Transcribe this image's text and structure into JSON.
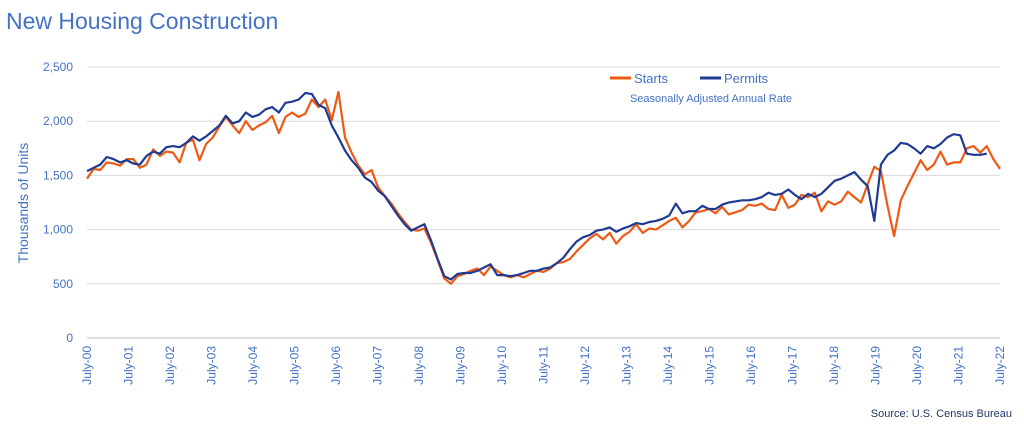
{
  "title": "New Housing Construction",
  "source": "Source: U.S. Census Bureau",
  "colors": {
    "starts": "#EE5A14",
    "permits": "#1F3A93",
    "text": "#4472C4",
    "grid": "#D9D9D9"
  },
  "chart_data": {
    "type": "line",
    "title": "New Housing Construction",
    "subtitle": "Seasonally Adjusted Annual Rate",
    "ylabel": "Thousands of Units",
    "xlabel": "",
    "ylim": [
      0,
      2500
    ],
    "yticks": [
      0,
      500,
      1000,
      1500,
      2000,
      2500
    ],
    "ytick_labels": [
      "0",
      "500",
      "1,000",
      "1,500",
      "2,000",
      "2,500"
    ],
    "xticks": [
      "July-00",
      "July-01",
      "July-02",
      "July-03",
      "July-04",
      "July-05",
      "July-06",
      "July-07",
      "July-08",
      "July-09",
      "July-10",
      "July-11",
      "July-12",
      "July-13",
      "July-14",
      "July-15",
      "July-16",
      "July-17",
      "July-18",
      "July-19",
      "July-20",
      "July-21",
      "July-22"
    ],
    "grid": "horizontal",
    "legend": "top-center",
    "x_frequency": "quarterly",
    "x_start": "July-00",
    "series": [
      {
        "name": "Starts",
        "color": "#EE5A14",
        "values": [
          1470,
          1560,
          1550,
          1620,
          1610,
          1590,
          1650,
          1650,
          1570,
          1600,
          1740,
          1680,
          1720,
          1710,
          1620,
          1800,
          1830,
          1640,
          1790,
          1850,
          1950,
          2040,
          1960,
          1890,
          2000,
          1920,
          1960,
          1990,
          2050,
          1890,
          2040,
          2080,
          2040,
          2070,
          2200,
          2130,
          2200,
          2010,
          2270,
          1850,
          1710,
          1590,
          1510,
          1550,
          1390,
          1310,
          1240,
          1150,
          1070,
          1000,
          990,
          1010,
          880,
          720,
          550,
          500,
          570,
          590,
          620,
          640,
          580,
          660,
          620,
          580,
          560,
          580,
          560,
          590,
          620,
          610,
          640,
          690,
          700,
          730,
          800,
          860,
          920,
          960,
          910,
          970,
          870,
          940,
          980,
          1050,
          970,
          1010,
          1000,
          1040,
          1080,
          1110,
          1020,
          1080,
          1160,
          1170,
          1190,
          1150,
          1210,
          1140,
          1160,
          1180,
          1230,
          1220,
          1240,
          1190,
          1180,
          1320,
          1200,
          1230,
          1320,
          1300,
          1340,
          1170,
          1260,
          1230,
          1260,
          1350,
          1300,
          1250,
          1420,
          1580,
          1540,
          1220,
          940,
          1270,
          1400,
          1520,
          1640,
          1550,
          1600,
          1720,
          1600,
          1620,
          1620,
          1750,
          1770,
          1710,
          1770,
          1650,
          1560
        ]
      },
      {
        "name": "Permits",
        "color": "#1F3A93",
        "values": [
          1540,
          1570,
          1600,
          1670,
          1650,
          1620,
          1640,
          1610,
          1600,
          1680,
          1720,
          1700,
          1760,
          1770,
          1760,
          1800,
          1860,
          1820,
          1860,
          1910,
          1960,
          2050,
          1980,
          2000,
          2080,
          2040,
          2060,
          2110,
          2130,
          2080,
          2170,
          2180,
          2200,
          2260,
          2250,
          2150,
          2120,
          1960,
          1850,
          1730,
          1640,
          1570,
          1480,
          1440,
          1360,
          1310,
          1220,
          1130,
          1050,
          990,
          1020,
          1050,
          900,
          730,
          570,
          540,
          590,
          600,
          600,
          620,
          650,
          680,
          580,
          580,
          570,
          580,
          600,
          620,
          620,
          640,
          650,
          690,
          740,
          820,
          890,
          930,
          950,
          990,
          1000,
          1020,
          980,
          1010,
          1030,
          1060,
          1050,
          1070,
          1080,
          1100,
          1130,
          1240,
          1150,
          1170,
          1170,
          1220,
          1190,
          1190,
          1230,
          1250,
          1260,
          1270,
          1270,
          1280,
          1300,
          1340,
          1320,
          1330,
          1370,
          1320,
          1280,
          1330,
          1300,
          1330,
          1390,
          1450,
          1470,
          1500,
          1530,
          1460,
          1400,
          1080,
          1600,
          1690,
          1730,
          1800,
          1790,
          1750,
          1700,
          1770,
          1750,
          1790,
          1850,
          1880,
          1870,
          1700,
          1690,
          1690,
          1700
        ]
      }
    ]
  }
}
